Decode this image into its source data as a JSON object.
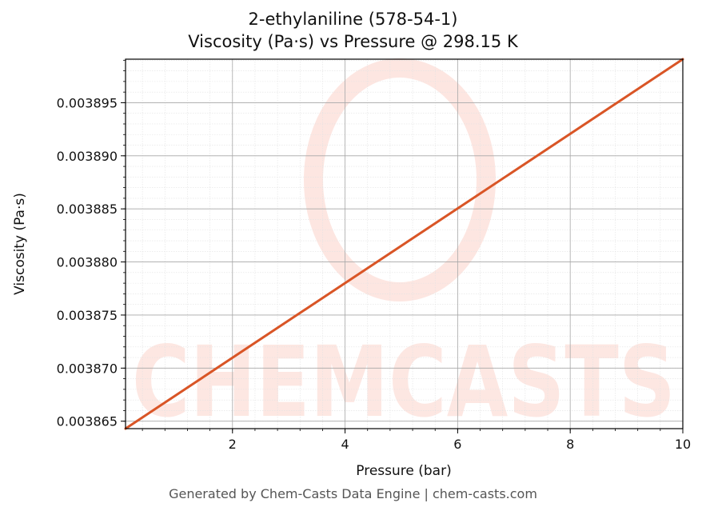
{
  "chart_data": {
    "type": "line",
    "title": "2-ethylaniline (578-54-1)",
    "subtitle": "Viscosity (Pa·s) vs Pressure @ 298.15 K",
    "xlabel": "Pressure (bar)",
    "ylabel": "Viscosity (Pa·s)",
    "xlim": [
      0.1,
      10
    ],
    "ylim": [
      0.0038643,
      0.0038991
    ],
    "x_ticks": [
      2,
      4,
      6,
      8,
      10
    ],
    "x_tick_labels": [
      "2",
      "4",
      "6",
      "8",
      "10"
    ],
    "y_ticks": [
      0.003865,
      0.00387,
      0.003875,
      0.00388,
      0.003885,
      0.00389,
      0.003895
    ],
    "y_tick_labels": [
      "0.003865",
      "0.003870",
      "0.003875",
      "0.003880",
      "0.003885",
      "0.003890",
      "0.003895"
    ],
    "grid": true,
    "series": [
      {
        "x": [
          0.1,
          10
        ],
        "y": [
          0.0038643,
          0.0038991
        ],
        "color": "#d95526"
      }
    ]
  },
  "watermark": "CHEMCASTS",
  "footer": "Generated by Chem-Casts Data Engine | chem-casts.com"
}
